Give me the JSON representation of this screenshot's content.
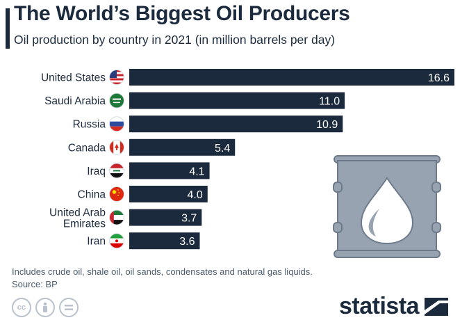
{
  "header": {
    "title": "The World’s Biggest Oil Producers",
    "subtitle": "Oil production by country in 2021 (in million barrels per day)"
  },
  "footer": {
    "note": "Includes crude oil, shale oil, oil sands, condensates and natural gas liquids.",
    "source": "Source: BP",
    "cc_icons": [
      "cc-icon",
      "attribution-icon",
      "no-derivatives-icon"
    ],
    "brand": "statista"
  },
  "colors": {
    "bar": "#1c2a3d",
    "text": "#1c2a3d",
    "barrel_fill": "#97a3b0",
    "barrel_stroke": "#6d7b8c"
  },
  "chart_data": {
    "type": "bar",
    "orientation": "horizontal",
    "categories": [
      "United States",
      "Saudi Arabia",
      "Russia",
      "Canada",
      "Iraq",
      "China",
      "United Arab Emirates",
      "Iran"
    ],
    "values": [
      16.6,
      11.0,
      10.9,
      5.4,
      4.1,
      4.0,
      3.7,
      3.6
    ],
    "value_labels": [
      "16.6",
      "11.0",
      "10.9",
      "5.4",
      "4.1",
      "4.0",
      "3.7",
      "3.6"
    ],
    "flags": [
      "us-flag-icon",
      "saudi-flag-icon",
      "russia-flag-icon",
      "canada-flag-icon",
      "iraq-flag-icon",
      "china-flag-icon",
      "uae-flag-icon",
      "iran-flag-icon"
    ],
    "xlim": [
      0,
      16.6
    ],
    "grid": false,
    "legend": false
  }
}
